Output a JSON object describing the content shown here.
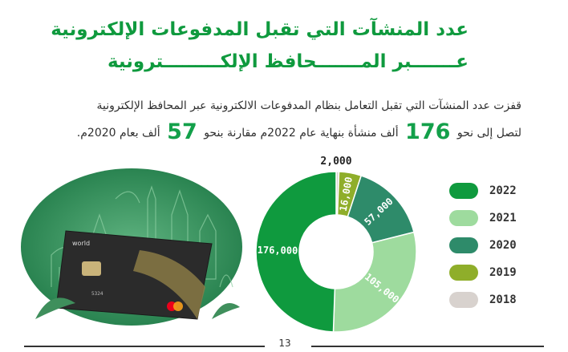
{
  "header": {
    "title_line1": "عدد المنشآت التي تقبل المدفوعات الإلكترونية",
    "title_line2": "عـــــــبر المـــــــحافظ الإلكـــــــــترونية"
  },
  "description": {
    "line1": "قفزت عدد المنشآت التي تقبل التعامل بنظام المدفوعات الالكترونية عبر المحافظ الإلكترونية",
    "line2_part1": "لتصل إلى نحو",
    "value_2022": "176",
    "line2_part2": "ألف منشأة بنهاية عام 2022م مقارنة بنحو",
    "value_2020": "57",
    "line2_part3": "ألف بعام 2020م."
  },
  "illustration": {
    "card_brand": "world",
    "card_number": "5324"
  },
  "chart_data": {
    "type": "donut",
    "series": [
      {
        "name": "2022",
        "value": 176000,
        "label": "176,000",
        "color": "#0f9a3e"
      },
      {
        "name": "2021",
        "value": 105000,
        "label": "105,000",
        "color": "#9edb9e"
      },
      {
        "name": "2020",
        "value": 57000,
        "label": "57,000",
        "color": "#2e8b6a"
      },
      {
        "name": "2019",
        "value": 16000,
        "label": "16,000",
        "color": "#8fae2a"
      },
      {
        "name": "2018",
        "value": 2000,
        "label": "2,000",
        "color": "#d8d2ce"
      }
    ]
  },
  "footer": {
    "page_number": "13"
  }
}
